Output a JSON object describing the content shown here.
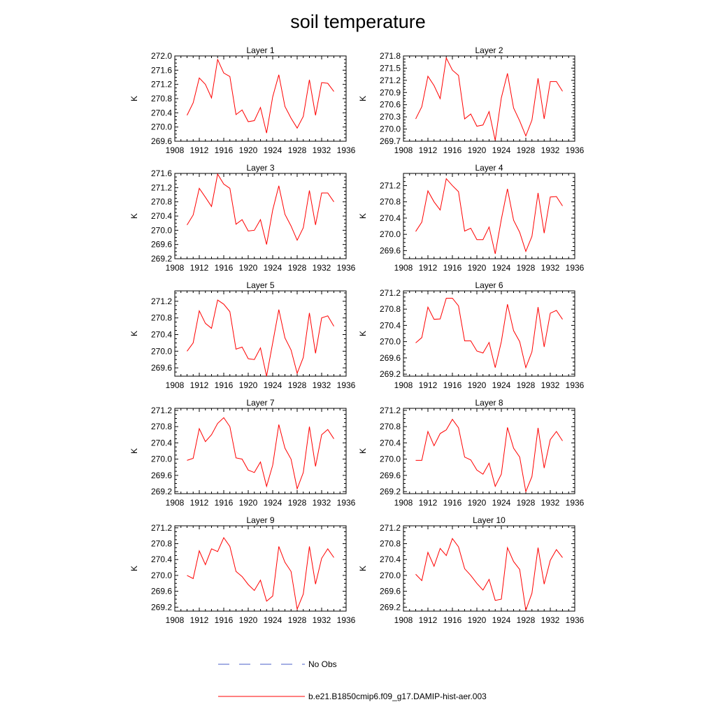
{
  "title": "soil temperature",
  "legend": {
    "no_obs_label": "No Obs",
    "model_label": "b.e21.B1850cmip6.f09_g17.DAMIP-hist-aer.003",
    "no_obs_color": "#4a5fc8",
    "model_color": "#ff0000"
  },
  "chart_data": [
    {
      "type": "line",
      "title": "Layer 1",
      "ylabel": "K",
      "xlim": [
        1908,
        1936
      ],
      "ylim": [
        269.6,
        272.0
      ],
      "xticks": [
        "1908",
        "1912",
        "1916",
        "1920",
        "1924",
        "1928",
        "1932",
        "1936"
      ],
      "yticks": [
        "272.0",
        "271.6",
        "271.2",
        "270.8",
        "270.4",
        "270.0",
        "269.6"
      ],
      "series": [
        {
          "name": "b.e21.B1850cmip6.f09_g17.DAMIP-hist-aer.003",
          "x": [
            1910,
            1911,
            1912,
            1913,
            1914,
            1915,
            1916,
            1917,
            1918,
            1919,
            1920,
            1921,
            1922,
            1923,
            1924,
            1925,
            1926,
            1927,
            1928,
            1929,
            1930,
            1931,
            1932,
            1933,
            1934
          ],
          "y": [
            270.33,
            270.68,
            271.38,
            271.2,
            270.82,
            271.9,
            271.52,
            271.42,
            270.35,
            270.48,
            270.15,
            270.18,
            270.55,
            269.83,
            270.85,
            271.47,
            270.58,
            270.25,
            269.97,
            270.3,
            271.33,
            270.33,
            271.25,
            271.23,
            271.0
          ]
        }
      ]
    },
    {
      "type": "line",
      "title": "Layer 2",
      "ylabel": "K",
      "xlim": [
        1908,
        1936
      ],
      "ylim": [
        269.7,
        271.8
      ],
      "xticks": [
        "1908",
        "1912",
        "1916",
        "1920",
        "1924",
        "1928",
        "1932",
        "1936"
      ],
      "yticks": [
        "271.8",
        "271.5",
        "271.2",
        "270.9",
        "270.6",
        "270.3",
        "270.0",
        "269.7"
      ],
      "series": [
        {
          "name": "b.e21.B1850cmip6.f09_g17.DAMIP-hist-aer.003",
          "x": [
            1910,
            1911,
            1912,
            1913,
            1914,
            1915,
            1916,
            1917,
            1918,
            1919,
            1920,
            1921,
            1922,
            1923,
            1924,
            1925,
            1926,
            1927,
            1928,
            1929,
            1930,
            1931,
            1932,
            1933,
            1934
          ],
          "y": [
            270.25,
            270.55,
            271.3,
            271.07,
            270.75,
            271.75,
            271.45,
            271.32,
            270.25,
            270.37,
            270.07,
            270.1,
            270.43,
            269.72,
            270.77,
            271.37,
            270.52,
            270.2,
            269.83,
            270.22,
            271.25,
            270.25,
            271.17,
            271.17,
            270.93
          ]
        }
      ]
    },
    {
      "type": "line",
      "title": "Layer 3",
      "ylabel": "K",
      "xlim": [
        1908,
        1936
      ],
      "ylim": [
        269.2,
        271.6
      ],
      "xticks": [
        "1908",
        "1912",
        "1916",
        "1920",
        "1924",
        "1928",
        "1932",
        "1936"
      ],
      "yticks": [
        "271.6",
        "271.2",
        "270.8",
        "270.4",
        "270.0",
        "269.6",
        "269.2"
      ],
      "series": [
        {
          "name": "b.e21.B1850cmip6.f09_g17.DAMIP-hist-aer.003",
          "x": [
            1910,
            1911,
            1912,
            1913,
            1914,
            1915,
            1916,
            1917,
            1918,
            1919,
            1920,
            1921,
            1922,
            1923,
            1924,
            1925,
            1926,
            1927,
            1928,
            1929,
            1930,
            1931,
            1932,
            1933,
            1934
          ],
          "y": [
            270.15,
            270.43,
            271.18,
            270.93,
            270.67,
            271.58,
            271.3,
            271.18,
            270.17,
            270.3,
            269.98,
            270.0,
            270.3,
            269.6,
            270.57,
            271.25,
            270.45,
            270.12,
            269.72,
            270.07,
            271.12,
            270.15,
            271.05,
            271.05,
            270.8
          ]
        }
      ]
    },
    {
      "type": "line",
      "title": "Layer 4",
      "ylabel": "K",
      "xlim": [
        1908,
        1936
      ],
      "ylim": [
        269.4,
        271.5
      ],
      "xticks": [
        "1908",
        "1912",
        "1916",
        "1920",
        "1924",
        "1928",
        "1932",
        "1936"
      ],
      "yticks": [
        "271.2",
        "270.8",
        "270.4",
        "270.0",
        "269.6"
      ],
      "series": [
        {
          "name": "b.e21.B1850cmip6.f09_g17.DAMIP-hist-aer.003",
          "x": [
            1910,
            1911,
            1912,
            1913,
            1914,
            1915,
            1916,
            1917,
            1918,
            1919,
            1920,
            1921,
            1922,
            1923,
            1924,
            1925,
            1926,
            1927,
            1928,
            1929,
            1930,
            1931,
            1932,
            1933,
            1934
          ],
          "y": [
            270.07,
            270.3,
            271.07,
            270.8,
            270.6,
            271.37,
            271.2,
            271.05,
            270.08,
            270.15,
            269.87,
            269.87,
            270.18,
            269.52,
            270.37,
            271.12,
            270.35,
            270.05,
            269.58,
            269.95,
            271.02,
            270.03,
            270.92,
            270.93,
            270.7
          ]
        }
      ]
    },
    {
      "type": "line",
      "title": "Layer 5",
      "ylabel": "K",
      "xlim": [
        1908,
        1936
      ],
      "ylim": [
        269.4,
        271.45
      ],
      "xticks": [
        "1908",
        "1912",
        "1916",
        "1920",
        "1924",
        "1928",
        "1932",
        "1936"
      ],
      "yticks": [
        "271.2",
        "270.8",
        "270.4",
        "270.0",
        "269.6"
      ],
      "series": [
        {
          "name": "b.e21.B1850cmip6.f09_g17.DAMIP-hist-aer.003",
          "x": [
            1910,
            1911,
            1912,
            1913,
            1914,
            1915,
            1916,
            1917,
            1918,
            1919,
            1920,
            1921,
            1922,
            1923,
            1924,
            1925,
            1926,
            1927,
            1928,
            1929,
            1930,
            1931,
            1932,
            1933,
            1934
          ],
          "y": [
            270.0,
            270.2,
            270.97,
            270.67,
            270.55,
            271.23,
            271.13,
            270.95,
            270.05,
            270.1,
            269.82,
            269.8,
            270.08,
            269.4,
            270.2,
            271.0,
            270.32,
            270.03,
            269.47,
            269.85,
            270.92,
            269.95,
            270.8,
            270.85,
            270.6
          ]
        }
      ]
    },
    {
      "type": "line",
      "title": "Layer 6",
      "ylabel": "K",
      "xlim": [
        1908,
        1936
      ],
      "ylim": [
        269.15,
        271.25
      ],
      "xticks": [
        "1908",
        "1912",
        "1916",
        "1920",
        "1924",
        "1928",
        "1932",
        "1936"
      ],
      "yticks": [
        "271.2",
        "270.8",
        "270.4",
        "270.0",
        "269.6",
        "269.2"
      ],
      "series": [
        {
          "name": "b.e21.B1850cmip6.f09_g17.DAMIP-hist-aer.003",
          "x": [
            1910,
            1911,
            1912,
            1913,
            1914,
            1915,
            1916,
            1917,
            1918,
            1919,
            1920,
            1921,
            1922,
            1923,
            1924,
            1925,
            1926,
            1927,
            1928,
            1929,
            1930,
            1931,
            1932,
            1933,
            1934
          ],
          "y": [
            269.97,
            270.1,
            270.85,
            270.55,
            270.56,
            271.07,
            271.07,
            270.88,
            270.02,
            270.02,
            269.77,
            269.72,
            269.98,
            269.36,
            270.0,
            270.92,
            270.27,
            270.0,
            269.36,
            269.75,
            270.85,
            269.87,
            270.7,
            270.77,
            270.55
          ]
        }
      ]
    },
    {
      "type": "line",
      "title": "Layer 7",
      "ylabel": "K",
      "xlim": [
        1908,
        1936
      ],
      "ylim": [
        269.15,
        271.25
      ],
      "xticks": [
        "1908",
        "1912",
        "1916",
        "1920",
        "1924",
        "1928",
        "1932",
        "1936"
      ],
      "yticks": [
        "271.2",
        "270.8",
        "270.4",
        "270.0",
        "269.6",
        "269.2"
      ],
      "series": [
        {
          "name": "b.e21.B1850cmip6.f09_g17.DAMIP-hist-aer.003",
          "x": [
            1910,
            1911,
            1912,
            1913,
            1914,
            1915,
            1916,
            1917,
            1918,
            1919,
            1920,
            1921,
            1922,
            1923,
            1924,
            1925,
            1926,
            1927,
            1928,
            1929,
            1930,
            1931,
            1932,
            1933,
            1934
          ],
          "y": [
            269.97,
            270.02,
            270.75,
            270.43,
            270.6,
            270.88,
            271.02,
            270.8,
            270.03,
            270.0,
            269.73,
            269.67,
            269.93,
            269.33,
            269.85,
            270.85,
            270.27,
            270.0,
            269.27,
            269.67,
            270.8,
            269.82,
            270.6,
            270.73,
            270.5
          ]
        }
      ]
    },
    {
      "type": "line",
      "title": "Layer 8",
      "ylabel": "K",
      "xlim": [
        1908,
        1936
      ],
      "ylim": [
        269.15,
        271.25
      ],
      "xticks": [
        "1908",
        "1912",
        "1916",
        "1920",
        "1924",
        "1928",
        "1932",
        "1936"
      ],
      "yticks": [
        "271.2",
        "270.8",
        "270.4",
        "270.0",
        "269.6",
        "269.2"
      ],
      "series": [
        {
          "name": "b.e21.B1850cmip6.f09_g17.DAMIP-hist-aer.003",
          "x": [
            1910,
            1911,
            1912,
            1913,
            1914,
            1915,
            1916,
            1917,
            1918,
            1919,
            1920,
            1921,
            1922,
            1923,
            1924,
            1925,
            1926,
            1927,
            1928,
            1929,
            1930,
            1931,
            1932,
            1933,
            1934
          ],
          "y": [
            269.97,
            269.97,
            270.68,
            270.33,
            270.63,
            270.72,
            270.98,
            270.77,
            270.05,
            269.98,
            269.73,
            269.63,
            269.9,
            269.33,
            269.63,
            270.78,
            270.27,
            270.05,
            269.2,
            269.57,
            270.77,
            269.78,
            270.48,
            270.68,
            270.45
          ]
        }
      ]
    },
    {
      "type": "line",
      "title": "Layer 9",
      "ylabel": "K",
      "xlim": [
        1908,
        1936
      ],
      "ylim": [
        269.1,
        271.25
      ],
      "xticks": [
        "1908",
        "1912",
        "1916",
        "1920",
        "1924",
        "1928",
        "1932",
        "1936"
      ],
      "yticks": [
        "271.2",
        "270.8",
        "270.4",
        "270.0",
        "269.6",
        "269.2"
      ],
      "series": [
        {
          "name": "b.e21.B1850cmip6.f09_g17.DAMIP-hist-aer.003",
          "x": [
            1910,
            1911,
            1912,
            1913,
            1914,
            1915,
            1916,
            1917,
            1918,
            1919,
            1920,
            1921,
            1922,
            1923,
            1924,
            1925,
            1926,
            1927,
            1928,
            1929,
            1930,
            1931,
            1932,
            1933,
            1934
          ],
          "y": [
            270.0,
            269.92,
            270.62,
            270.27,
            270.67,
            270.6,
            270.95,
            270.73,
            270.1,
            269.97,
            269.77,
            269.62,
            269.88,
            269.35,
            269.48,
            270.73,
            270.33,
            270.1,
            269.15,
            269.53,
            270.73,
            269.78,
            270.43,
            270.67,
            270.45
          ]
        }
      ]
    },
    {
      "type": "line",
      "title": "Layer 10",
      "ylabel": "K",
      "xlim": [
        1908,
        1936
      ],
      "ylim": [
        269.1,
        271.25
      ],
      "xticks": [
        "1908",
        "1912",
        "1916",
        "1920",
        "1924",
        "1928",
        "1932",
        "1936"
      ],
      "yticks": [
        "271.2",
        "270.8",
        "270.4",
        "270.0",
        "269.6",
        "269.2"
      ],
      "series": [
        {
          "name": "b.e21.B1850cmip6.f09_g17.DAMIP-hist-aer.003",
          "x": [
            1910,
            1911,
            1912,
            1913,
            1914,
            1915,
            1916,
            1917,
            1918,
            1919,
            1920,
            1921,
            1922,
            1923,
            1924,
            1925,
            1926,
            1927,
            1928,
            1929,
            1930,
            1931,
            1932,
            1933,
            1934
          ],
          "y": [
            270.03,
            269.87,
            270.58,
            270.23,
            270.68,
            270.5,
            270.93,
            270.72,
            270.17,
            270.0,
            269.8,
            269.63,
            269.9,
            269.37,
            269.4,
            270.7,
            270.35,
            270.15,
            269.12,
            269.55,
            270.7,
            269.78,
            270.38,
            270.65,
            270.45
          ]
        }
      ]
    }
  ]
}
